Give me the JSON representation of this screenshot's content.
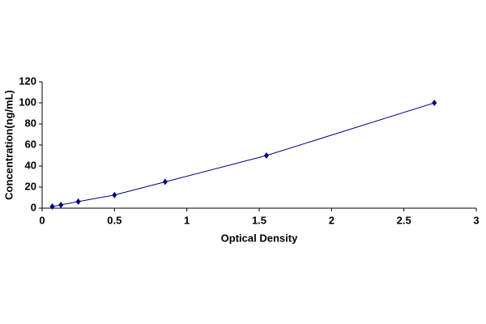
{
  "chart_data": {
    "type": "scatter",
    "x_label": "Optical Density",
    "y_label": "Concentration(ng/mL)",
    "series": [
      {
        "color": "#000080",
        "x": [
          0.07,
          0.13,
          0.25,
          0.5,
          0.85,
          1.55,
          2.71
        ],
        "values": [
          1.56,
          3.12,
          6.25,
          12.5,
          25,
          50,
          100
        ]
      }
    ],
    "xlim": [
      0,
      3
    ],
    "xticks": [
      0,
      0.5,
      1,
      1.5,
      2,
      2.5,
      3
    ],
    "ylim": [
      0,
      120
    ],
    "yticks": [
      0,
      20,
      40,
      60,
      80,
      100,
      120
    ],
    "grid": false,
    "line": true
  }
}
